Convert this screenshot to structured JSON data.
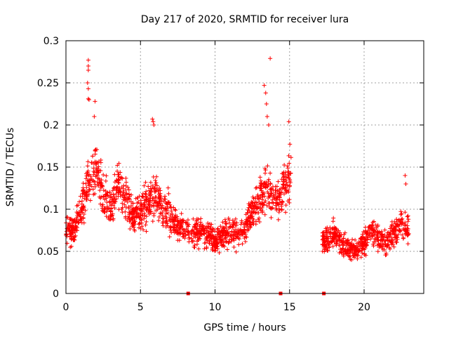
{
  "chart_data": {
    "type": "scatter",
    "title": "Day 217 of 2020, SRMTID for receiver lura",
    "xlabel": "GPS time / hours",
    "ylabel": "SRMTID / TECUs",
    "xlim": [
      0,
      24
    ],
    "ylim": [
      0,
      0.3
    ],
    "xticks": [
      "0",
      "5",
      "10",
      "15",
      "20"
    ],
    "xtick_values": [
      0,
      5,
      10,
      15,
      20
    ],
    "yticks": [
      "0",
      "0.05",
      "0.1",
      "0.15",
      "0.2",
      "0.25",
      "0.3"
    ],
    "ytick_values": [
      0,
      0.05,
      0.1,
      0.15,
      0.2,
      0.25,
      0.3
    ],
    "grid": true,
    "marker": "+",
    "color": "#ff0000",
    "zero_markers_x": [
      8.2,
      14.4,
      17.3
    ],
    "series": [
      {
        "name": "SRMTID",
        "segments": [
          {
            "x_start": 0.0,
            "x_end": 15.1,
            "profile": [
              [
                0.0,
                0.08
              ],
              [
                0.5,
                0.07
              ],
              [
                1.0,
                0.1
              ],
              [
                1.5,
                0.13
              ],
              [
                2.0,
                0.15
              ],
              [
                2.5,
                0.12
              ],
              [
                3.0,
                0.1
              ],
              [
                3.5,
                0.13
              ],
              [
                4.0,
                0.11
              ],
              [
                4.5,
                0.09
              ],
              [
                5.0,
                0.1
              ],
              [
                5.5,
                0.11
              ],
              [
                6.0,
                0.12
              ],
              [
                6.5,
                0.1
              ],
              [
                7.0,
                0.095
              ],
              [
                7.5,
                0.08
              ],
              [
                8.0,
                0.075
              ],
              [
                8.5,
                0.07
              ],
              [
                9.0,
                0.075
              ],
              [
                9.5,
                0.07
              ],
              [
                10.0,
                0.06
              ],
              [
                10.5,
                0.07
              ],
              [
                11.0,
                0.075
              ],
              [
                11.5,
                0.07
              ],
              [
                12.0,
                0.075
              ],
              [
                12.5,
                0.1
              ],
              [
                13.0,
                0.11
              ],
              [
                13.5,
                0.13
              ],
              [
                14.0,
                0.11
              ],
              [
                14.5,
                0.12
              ],
              [
                15.0,
                0.14
              ]
            ]
          },
          {
            "x_start": 17.2,
            "x_end": 23.0,
            "profile": [
              [
                17.2,
                0.06
              ],
              [
                18.0,
                0.07
              ],
              [
                18.5,
                0.06
              ],
              [
                19.0,
                0.055
              ],
              [
                19.5,
                0.05
              ],
              [
                20.0,
                0.06
              ],
              [
                20.5,
                0.075
              ],
              [
                21.0,
                0.065
              ],
              [
                21.5,
                0.06
              ],
              [
                22.0,
                0.07
              ],
              [
                22.5,
                0.08
              ],
              [
                23.0,
                0.075
              ]
            ]
          }
        ],
        "spikes": [
          {
            "x": 1.5,
            "y": 0.277
          },
          {
            "x": 1.5,
            "y": 0.27
          },
          {
            "x": 1.5,
            "y": 0.265
          },
          {
            "x": 1.45,
            "y": 0.25
          },
          {
            "x": 1.5,
            "y": 0.243
          },
          {
            "x": 1.5,
            "y": 0.231
          },
          {
            "x": 1.55,
            "y": 0.23
          },
          {
            "x": 1.95,
            "y": 0.228
          },
          {
            "x": 1.9,
            "y": 0.21
          },
          {
            "x": 5.8,
            "y": 0.207
          },
          {
            "x": 5.85,
            "y": 0.204
          },
          {
            "x": 5.9,
            "y": 0.2
          },
          {
            "x": 13.7,
            "y": 0.279
          },
          {
            "x": 13.3,
            "y": 0.247
          },
          {
            "x": 13.4,
            "y": 0.238
          },
          {
            "x": 13.45,
            "y": 0.225
          },
          {
            "x": 13.5,
            "y": 0.21
          },
          {
            "x": 13.6,
            "y": 0.2
          },
          {
            "x": 14.95,
            "y": 0.204
          },
          {
            "x": 22.75,
            "y": 0.14
          },
          {
            "x": 22.8,
            "y": 0.13
          }
        ]
      }
    ]
  }
}
